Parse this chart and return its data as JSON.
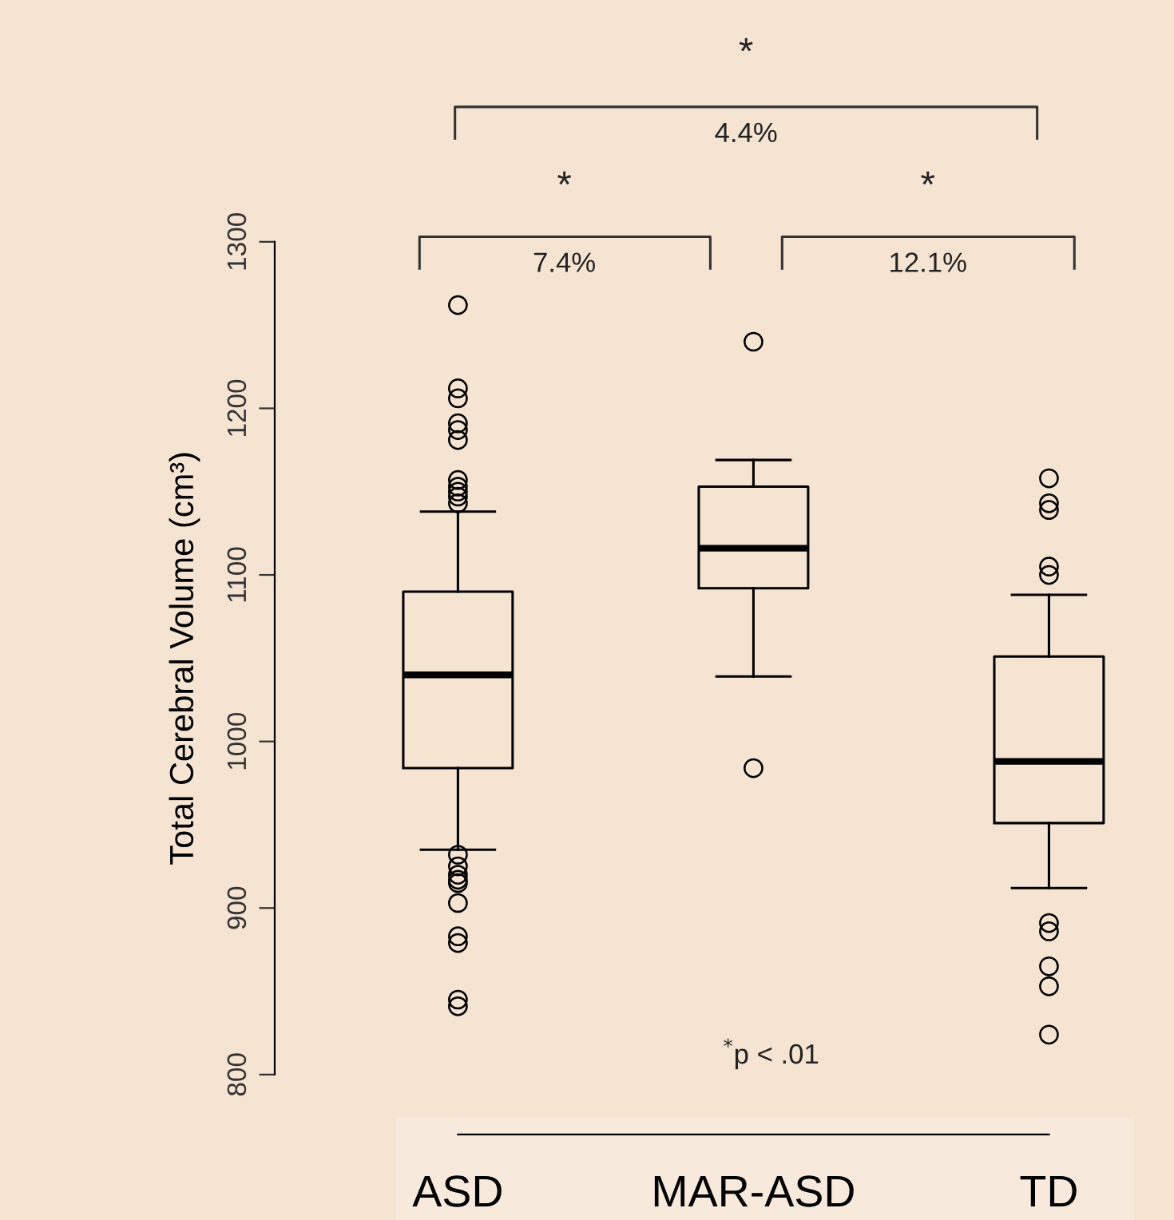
{
  "chart_data": {
    "type": "box",
    "ylabel": "Total Cerebral Volume (cm³)",
    "categories": [
      "ASD",
      "MAR-ASD",
      "TD"
    ],
    "boxes": [
      {
        "low": 935,
        "q1": 984,
        "median": 1040,
        "q3": 1090,
        "high": 1138,
        "outliers": [
          1262,
          1212,
          1206,
          1191,
          1187,
          1181,
          1157,
          1153,
          1150,
          1147,
          1143,
          932,
          925,
          920,
          917,
          915,
          903,
          883,
          879,
          845,
          841
        ]
      },
      {
        "low": 1039,
        "q1": 1092,
        "median": 1116,
        "q3": 1153,
        "high": 1169,
        "outliers": [
          1240,
          984
        ]
      },
      {
        "low": 912,
        "q1": 951,
        "median": 988,
        "q3": 1051,
        "high": 1088,
        "outliers": [
          1158,
          1143,
          1139,
          1105,
          1100,
          891,
          886,
          865,
          853,
          824
        ]
      }
    ],
    "ylim": [
      800,
      1300
    ],
    "yticks": [
      800,
      900,
      1000,
      1100,
      1200,
      1300
    ],
    "marker": "circle",
    "grid": false,
    "annotations": [
      "*",
      "4.4%",
      "*",
      "7.4%",
      "*",
      "12.1%",
      "$^{*}$p < .01"
    ]
  }
}
